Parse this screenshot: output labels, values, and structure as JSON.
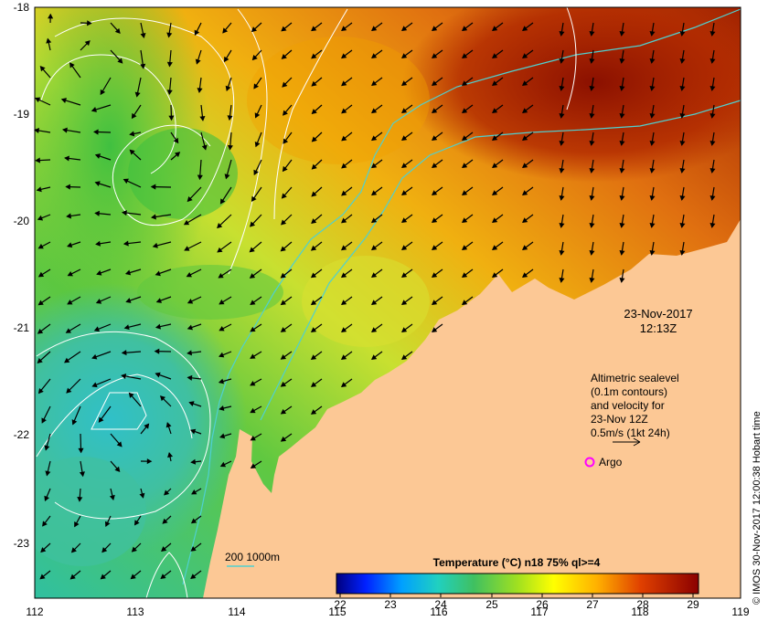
{
  "map": {
    "lon_ticks": [
      "112",
      "113",
      "114",
      "115",
      "116",
      "117",
      "118",
      "119"
    ],
    "lat_ticks": [
      "-18",
      "-19",
      "-20",
      "-21",
      "-22",
      "-23"
    ],
    "date": "23-Nov-2017",
    "time": "12:13Z",
    "legend_lines": [
      "Altimetric sealevel",
      "(0.1m contours)",
      "and velocity for",
      "23-Nov 12Z",
      "0.5m/s (1kt 24h)"
    ],
    "argo_label": "Argo",
    "bathymetry_label": "200  1000m",
    "colorbar_title": "Temperature (°C) n18 75% ql>=4",
    "colorbar_ticks": [
      "22",
      "23",
      "24",
      "25",
      "26",
      "27",
      "28",
      "29"
    ],
    "credit": "© IMOS 30-Nov-2017 12:00:38 Hobart time"
  },
  "colors": {
    "land": "#fcc895",
    "contour": "#ffffff",
    "bathymetry": "#4fd0d0",
    "argo": "#ff00ff",
    "arrow": "#000000"
  }
}
